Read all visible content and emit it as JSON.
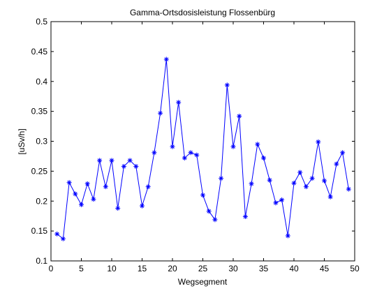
{
  "chart_data": {
    "type": "line",
    "title": "Gamma-Ortsdosisleistung Flossenbürg",
    "xlabel": "Wegsegment",
    "ylabel": "[uSv/h]",
    "xlim": [
      0,
      50
    ],
    "ylim": [
      0.1,
      0.5
    ],
    "xticks": [
      0,
      5,
      10,
      15,
      20,
      25,
      30,
      35,
      40,
      45,
      50
    ],
    "xtick_labels": [
      "0",
      "5",
      "10",
      "15",
      "20",
      "25",
      "30",
      "35",
      "40",
      "45",
      "50"
    ],
    "yticks": [
      0.1,
      0.15,
      0.2,
      0.25,
      0.3,
      0.35,
      0.4,
      0.45,
      0.5
    ],
    "ytick_labels": [
      "0.1",
      "0.15",
      "0.2",
      "0.25",
      "0.3",
      "0.35",
      "0.4",
      "0.45",
      "0.5"
    ],
    "grid": false,
    "marker": "asterisk",
    "series": [
      {
        "color": "#0000ff",
        "x": [
          1,
          2,
          3,
          4,
          5,
          6,
          7,
          8,
          9,
          10,
          11,
          12,
          13,
          14,
          15,
          16,
          17,
          18,
          19,
          20,
          21,
          22,
          23,
          24,
          25,
          26,
          27,
          28,
          29,
          30,
          31,
          32,
          33,
          34,
          35,
          36,
          37,
          38,
          39,
          40,
          41,
          42,
          43,
          44,
          45,
          46,
          47,
          48,
          49
        ],
        "values": [
          0.145,
          0.137,
          0.231,
          0.212,
          0.194,
          0.229,
          0.203,
          0.268,
          0.224,
          0.268,
          0.188,
          0.258,
          0.268,
          0.258,
          0.192,
          0.224,
          0.281,
          0.347,
          0.437,
          0.291,
          0.365,
          0.272,
          0.281,
          0.277,
          0.21,
          0.183,
          0.169,
          0.238,
          0.394,
          0.291,
          0.342,
          0.174,
          0.229,
          0.295,
          0.272,
          0.235,
          0.197,
          0.202,
          0.142,
          0.23,
          0.248,
          0.224,
          0.238,
          0.299,
          0.234,
          0.207,
          0.262,
          0.281,
          0.22
        ]
      }
    ]
  }
}
